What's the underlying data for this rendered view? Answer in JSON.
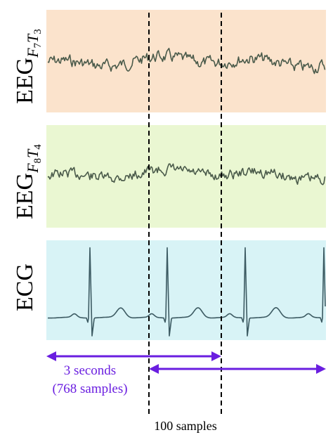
{
  "panels": [
    {
      "id": "eeg1",
      "label_main": "EEG",
      "label_sub1": "F",
      "label_sub1_idx": "7",
      "label_sub2": "T",
      "label_sub2_idx": "3",
      "bg_color": "#fbe3cc",
      "line_color": "#4a5a4a"
    },
    {
      "id": "eeg2",
      "label_main": "EEG",
      "label_sub1": "F",
      "label_sub1_idx": "8",
      "label_sub2": "T",
      "label_sub2_idx": "4",
      "bg_color": "#eaf7d2",
      "line_color": "#4a5a4a"
    },
    {
      "id": "ecg",
      "label_main": "ECG",
      "bg_color": "#d8f3f6",
      "line_color": "#3c5a62"
    }
  ],
  "annotations": {
    "window_label_line1": "3 seconds",
    "window_label_line2": "(768 samples)",
    "shift_label": "100 samples",
    "arrow_color": "#6a1ee0"
  }
}
